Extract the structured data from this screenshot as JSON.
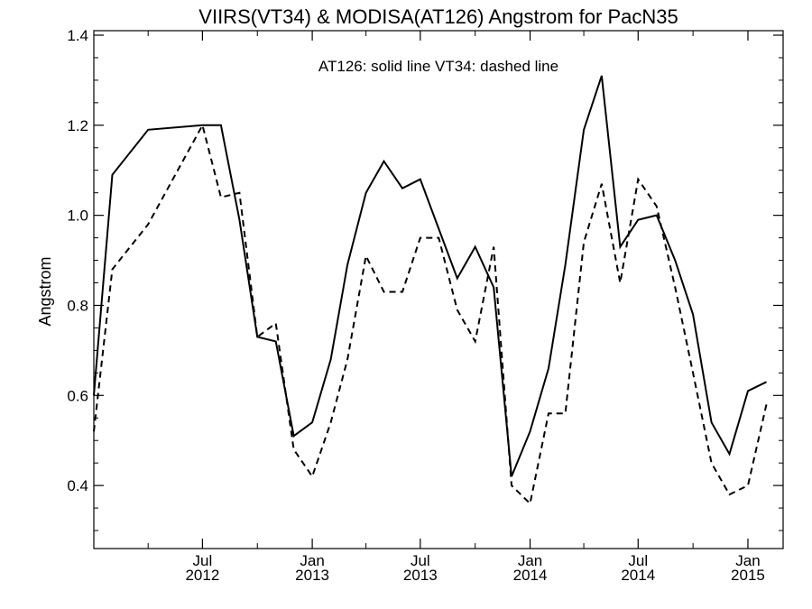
{
  "chart_data": {
    "type": "line",
    "title": "VIIRS(VT34) & MODISA(AT126)  Angstrom for PacN35",
    "annotation": "AT126: solid line   VT34: dashed line",
    "ylabel": "Angstrom",
    "xlabel": "",
    "ylim": [
      0.26,
      1.41
    ],
    "y_ticks": [
      0.4,
      0.6,
      0.8,
      1.0,
      1.2,
      1.4
    ],
    "y_tick_labels": [
      "0.4",
      "0.6",
      "0.8",
      "1.0",
      "1.2",
      "1.4"
    ],
    "x_date_range": [
      "2012-01-01",
      "2015-03-01"
    ],
    "x_ticks": [
      {
        "date": "2012-07-01",
        "month": "Jul",
        "year": "2012"
      },
      {
        "date": "2013-01-01",
        "month": "Jan",
        "year": "2013"
      },
      {
        "date": "2013-07-01",
        "month": "Jul",
        "year": "2013"
      },
      {
        "date": "2014-01-01",
        "month": "Jan",
        "year": "2014"
      },
      {
        "date": "2014-07-01",
        "month": "Jul",
        "year": "2014"
      },
      {
        "date": "2015-01-01",
        "month": "Jan",
        "year": "2015"
      }
    ],
    "x_minor_tick_dates": [
      "2012-01-01",
      "2012-04-01",
      "2012-10-01",
      "2013-04-01",
      "2013-10-01",
      "2014-04-01",
      "2014-10-01"
    ],
    "series": [
      {
        "name": "AT126",
        "style": "solid",
        "color": "#000000",
        "points": [
          [
            "2012-01-01",
            0.6
          ],
          [
            "2012-02-01",
            1.09
          ],
          [
            "2012-04-01",
            1.19
          ],
          [
            "2012-07-01",
            1.2
          ],
          [
            "2012-08-01",
            1.2
          ],
          [
            "2012-09-01",
            0.99
          ],
          [
            "2012-10-01",
            0.73
          ],
          [
            "2012-11-01",
            0.72
          ],
          [
            "2012-12-01",
            0.51
          ],
          [
            "2013-01-01",
            0.54
          ],
          [
            "2013-02-01",
            0.68
          ],
          [
            "2013-03-01",
            0.89
          ],
          [
            "2013-04-01",
            1.05
          ],
          [
            "2013-05-01",
            1.12
          ],
          [
            "2013-06-01",
            1.06
          ],
          [
            "2013-07-01",
            1.08
          ],
          [
            "2013-08-01",
            0.97
          ],
          [
            "2013-09-01",
            0.86
          ],
          [
            "2013-10-01",
            0.93
          ],
          [
            "2013-11-01",
            0.84
          ],
          [
            "2013-12-01",
            0.42
          ],
          [
            "2014-01-01",
            0.52
          ],
          [
            "2014-02-01",
            0.66
          ],
          [
            "2014-03-01",
            0.89
          ],
          [
            "2014-04-01",
            1.19
          ],
          [
            "2014-05-01",
            1.31
          ],
          [
            "2014-06-01",
            0.93
          ],
          [
            "2014-07-01",
            0.99
          ],
          [
            "2014-08-01",
            1.0
          ],
          [
            "2014-09-01",
            0.9
          ],
          [
            "2014-10-01",
            0.78
          ],
          [
            "2014-11-01",
            0.54
          ],
          [
            "2014-12-01",
            0.47
          ],
          [
            "2015-01-01",
            0.61
          ],
          [
            "2015-02-01",
            0.63
          ]
        ]
      },
      {
        "name": "VT34",
        "style": "dashed",
        "color": "#000000",
        "points": [
          [
            "2012-01-01",
            0.52
          ],
          [
            "2012-02-01",
            0.88
          ],
          [
            "2012-04-01",
            0.98
          ],
          [
            "2012-07-01",
            1.2
          ],
          [
            "2012-08-01",
            1.04
          ],
          [
            "2012-09-01",
            1.05
          ],
          [
            "2012-10-01",
            0.73
          ],
          [
            "2012-11-01",
            0.76
          ],
          [
            "2012-12-01",
            0.48
          ],
          [
            "2013-01-01",
            0.42
          ],
          [
            "2013-02-01",
            0.54
          ],
          [
            "2013-03-01",
            0.68
          ],
          [
            "2013-04-01",
            0.91
          ],
          [
            "2013-05-01",
            0.83
          ],
          [
            "2013-06-01",
            0.83
          ],
          [
            "2013-07-01",
            0.95
          ],
          [
            "2013-08-01",
            0.95
          ],
          [
            "2013-09-01",
            0.79
          ],
          [
            "2013-10-01",
            0.72
          ],
          [
            "2013-11-01",
            0.93
          ],
          [
            "2013-12-01",
            0.4
          ],
          [
            "2014-01-01",
            0.36
          ],
          [
            "2014-02-01",
            0.56
          ],
          [
            "2014-03-01",
            0.56
          ],
          [
            "2014-04-01",
            0.94
          ],
          [
            "2014-05-01",
            1.07
          ],
          [
            "2014-06-01",
            0.85
          ],
          [
            "2014-07-01",
            1.08
          ],
          [
            "2014-08-01",
            1.02
          ],
          [
            "2014-09-01",
            0.84
          ],
          [
            "2014-10-01",
            0.65
          ],
          [
            "2014-11-01",
            0.45
          ],
          [
            "2014-12-01",
            0.38
          ],
          [
            "2015-01-01",
            0.4
          ],
          [
            "2015-02-01",
            0.58
          ]
        ]
      }
    ]
  }
}
